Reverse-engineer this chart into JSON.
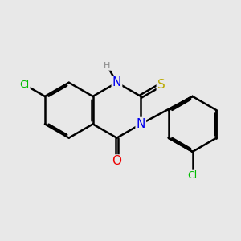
{
  "background_color": "#e8e8e8",
  "bond_color": "#000000",
  "bond_width": 1.8,
  "atom_colors": {
    "Cl": "#00bb00",
    "N": "#0000ee",
    "O": "#ee0000",
    "S": "#bbaa00",
    "H": "#888888"
  },
  "font_size": 10,
  "fig_size": [
    3.0,
    3.0
  ],
  "dpi": 100
}
